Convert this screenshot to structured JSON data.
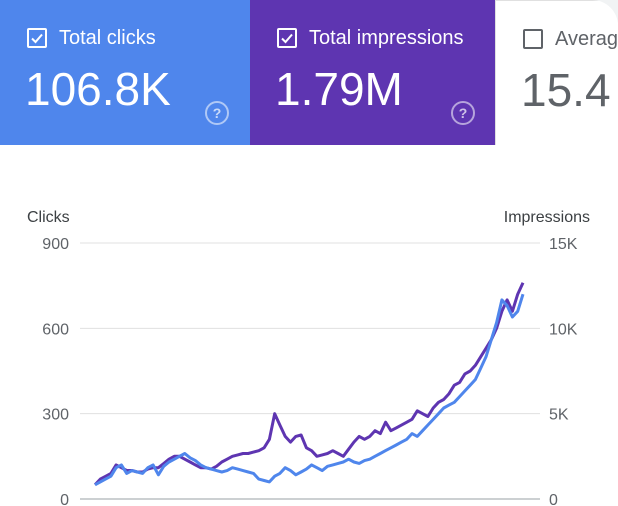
{
  "metrics": [
    {
      "label": "Total clicks",
      "value": "106.8K",
      "checked": true,
      "color": "#4f86ec"
    },
    {
      "label": "Total impressions",
      "value": "1.79M",
      "checked": true,
      "color": "#5e35b1"
    },
    {
      "label": "Average",
      "value": "15.4",
      "checked": false,
      "color": "#ffffff"
    }
  ],
  "help_icon": "?",
  "chart_data": {
    "type": "line",
    "left_axis": {
      "label": "Clicks",
      "ticks": [
        "900",
        "600",
        "300",
        "0"
      ],
      "ylim": [
        0,
        900
      ]
    },
    "right_axis": {
      "label": "Impressions",
      "ticks": [
        "15K",
        "10K",
        "5K",
        "0"
      ],
      "ylim": [
        0,
        15000
      ]
    },
    "grid": true,
    "series": [
      {
        "name": "Total clicks",
        "axis": "left",
        "color": "#4f86ec",
        "values": [
          50,
          60,
          70,
          80,
          110,
          120,
          90,
          100,
          95,
          90,
          110,
          120,
          85,
          115,
          130,
          140,
          150,
          160,
          145,
          135,
          120,
          110,
          105,
          100,
          95,
          100,
          110,
          105,
          100,
          95,
          90,
          70,
          65,
          60,
          80,
          90,
          110,
          100,
          85,
          95,
          105,
          120,
          110,
          100,
          115,
          120,
          125,
          130,
          140,
          130,
          125,
          135,
          140,
          150,
          160,
          170,
          180,
          190,
          200,
          210,
          230,
          220,
          240,
          260,
          280,
          300,
          320,
          330,
          340,
          360,
          380,
          400,
          420,
          460,
          500,
          560,
          620,
          700,
          680,
          640,
          660,
          720
        ]
      },
      {
        "name": "Total impressions",
        "axis": "right",
        "color": "#5e35b1",
        "values": [
          833,
          1167,
          1333,
          1500,
          2000,
          1833,
          1667,
          1667,
          1583,
          1583,
          1750,
          1833,
          1833,
          2083,
          2333,
          2500,
          2500,
          2333,
          2167,
          2000,
          1833,
          1833,
          1750,
          1917,
          2167,
          2333,
          2500,
          2583,
          2667,
          2667,
          2750,
          2833,
          3000,
          3500,
          5000,
          4333,
          3667,
          3333,
          3667,
          3750,
          3000,
          2833,
          2500,
          2583,
          2667,
          2833,
          2667,
          2500,
          2917,
          3333,
          3667,
          3500,
          3667,
          4000,
          3833,
          4500,
          4000,
          4167,
          4333,
          4500,
          4667,
          5167,
          5000,
          4833,
          5333,
          5667,
          5833,
          6167,
          6667,
          6833,
          7333,
          7500,
          7833,
          8333,
          8833,
          9333,
          10000,
          11000,
          11667,
          11000,
          12000,
          12667
        ]
      }
    ]
  }
}
